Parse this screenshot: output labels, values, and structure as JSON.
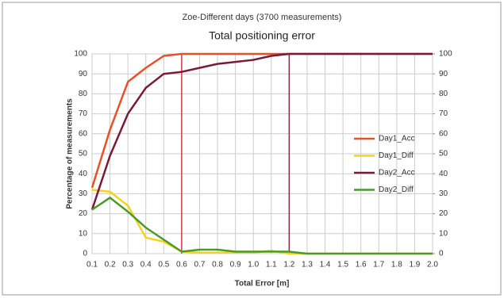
{
  "chart_data": {
    "type": "line",
    "title": "Zoe-Different days (3700 measurements)",
    "subtitle": "Total positioning error",
    "x_label": "Total Error [m]",
    "y_label": "Percentage of measurements",
    "x": [
      0.1,
      0.2,
      0.3,
      0.4,
      0.5,
      0.6,
      0.7,
      0.8,
      0.9,
      1,
      1.1,
      1.2,
      1.3,
      1.4,
      1.5,
      1.6,
      1.7,
      1.8,
      1.9,
      2
    ],
    "series": [
      {
        "name": "Day1_Acc",
        "color": "#e8502a",
        "values": [
          33,
          62,
          86,
          93,
          99,
          100,
          100,
          100,
          100,
          100,
          100,
          100,
          100,
          100,
          100,
          100,
          100,
          100,
          100,
          100
        ]
      },
      {
        "name": "Day1_Diff",
        "color": "#f5d31c",
        "values": [
          32,
          31,
          24,
          8,
          6,
          1,
          0.5,
          0.5,
          0.5,
          0.5,
          1.5,
          0,
          0,
          0,
          0,
          0,
          0,
          0,
          0,
          0
        ]
      },
      {
        "name": "Day2_Acc",
        "color": "#7a1a3a",
        "values": [
          22,
          49,
          70,
          83,
          90,
          91,
          93,
          95,
          96,
          97,
          99,
          100,
          100,
          100,
          100,
          100,
          100,
          100,
          100,
          100
        ]
      },
      {
        "name": "Day2_Diff",
        "color": "#4a9a2a",
        "values": [
          22,
          28,
          21,
          13,
          7,
          1,
          2,
          2,
          1,
          1,
          1,
          1,
          0,
          0,
          0,
          0,
          0,
          0,
          0,
          0
        ]
      }
    ],
    "vlines": [
      {
        "value": 0.6,
        "color": "#d9364a"
      },
      {
        "value": 1.2,
        "color": "#8a2a4a"
      }
    ],
    "xlim": [
      0.1,
      2.0
    ],
    "xticks": [
      0.1,
      0.2,
      0.3,
      0.4,
      0.5,
      0.6,
      0.7,
      0.8,
      0.9,
      {
        "value": 1,
        "label": "1.0"
      },
      1.1,
      1.2,
      1.3,
      1.4,
      1.5,
      1.6,
      1.7,
      1.8,
      1.9,
      {
        "value": 2,
        "label": "2.0"
      }
    ],
    "ylim": [
      0,
      100
    ],
    "yticks": [
      0,
      10,
      20,
      30,
      40,
      50,
      60,
      70,
      80,
      90,
      100
    ],
    "y2lim": [
      0,
      100
    ],
    "y2ticks": [
      0,
      10,
      20,
      30,
      40,
      50,
      60,
      70,
      80,
      90,
      100
    ],
    "grid": true,
    "legend": "right"
  }
}
